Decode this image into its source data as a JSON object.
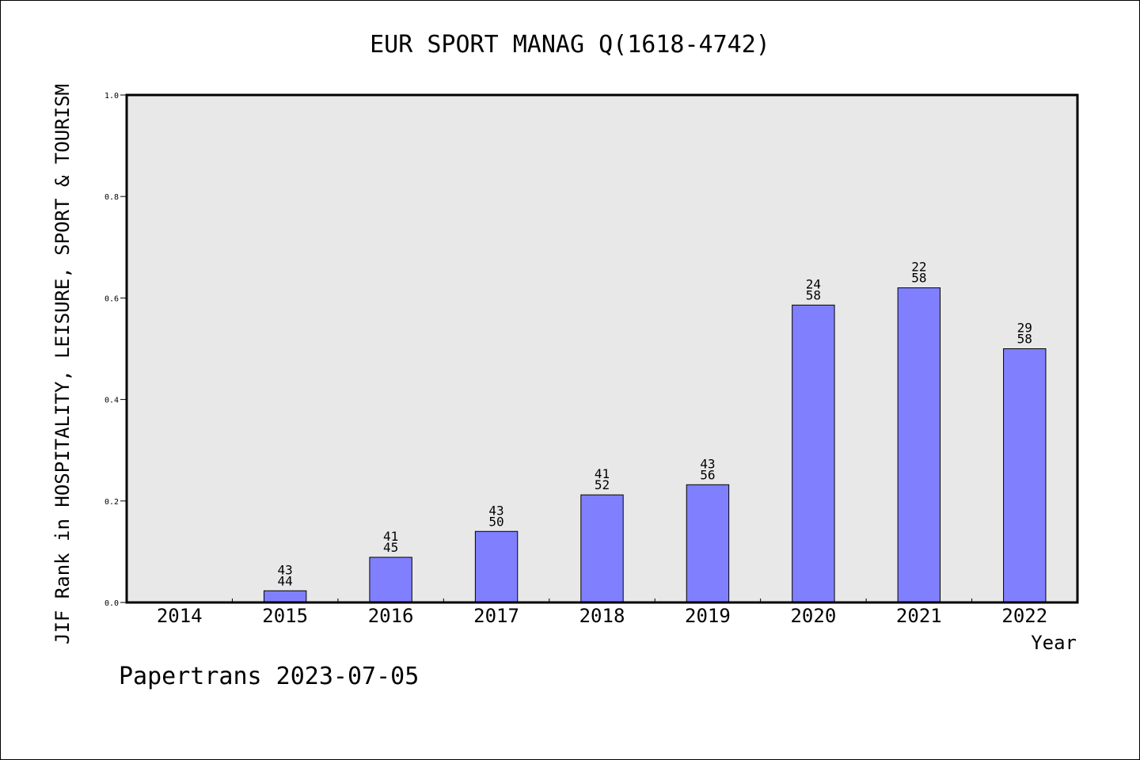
{
  "chart_data": {
    "type": "bar",
    "title": "EUR SPORT MANAG Q(1618-4742)",
    "xlabel": "Year",
    "ylabel": "JIF Rank in HOSPITALITY, LEISURE, SPORT & TOURISM",
    "ylim": [
      0,
      1.0
    ],
    "yticks": [
      "0.0",
      "0.2",
      "0.4",
      "0.6",
      "0.8",
      "1.0"
    ],
    "categories": [
      "2014",
      "2015",
      "2016",
      "2017",
      "2018",
      "2019",
      "2020",
      "2021",
      "2022"
    ],
    "values": [
      null,
      0.023,
      0.089,
      0.14,
      0.212,
      0.232,
      0.586,
      0.62,
      0.5
    ],
    "rank_labels": [
      null,
      [
        "43",
        "44"
      ],
      [
        "41",
        "45"
      ],
      [
        "43",
        "50"
      ],
      [
        "41",
        "52"
      ],
      [
        "43",
        "56"
      ],
      [
        "24",
        "58"
      ],
      [
        "22",
        "58"
      ],
      [
        "29",
        "58"
      ]
    ],
    "grid": false,
    "colors": {
      "bar": "#8080ff",
      "plot_bg": "#e8e8e8"
    }
  },
  "footer": {
    "credit": "Papertrans 2023-07-05"
  }
}
